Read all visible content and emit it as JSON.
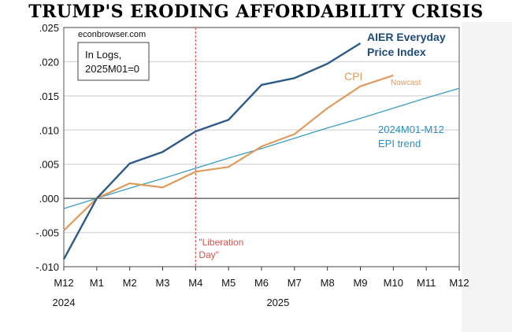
{
  "title": "TRUMP'S ERODING AFFORDABILITY CRISIS",
  "chart_data": {
    "type": "line",
    "title": "TRUMP'S ERODING AFFORDABILITY CRISIS",
    "source_label": "econbrowser.com",
    "note_lines": [
      "In Logs,",
      "2025M01=0"
    ],
    "x": [
      "M12",
      "M1",
      "M2",
      "M3",
      "M4",
      "M5",
      "M6",
      "M7",
      "M8",
      "M9",
      "M10",
      "M11",
      "M12"
    ],
    "year_labels": [
      {
        "label": "2024",
        "at": "M12"
      },
      {
        "label": "2025",
        "at": "M6-M7"
      }
    ],
    "ylim": [
      -0.01,
      0.025
    ],
    "yticks": [
      ".025",
      ".020",
      ".015",
      ".010",
      ".005",
      ".000",
      "-.005",
      "-.010"
    ],
    "ytick_values": [
      0.025,
      0.02,
      0.015,
      0.01,
      0.005,
      0.0,
      -0.005,
      -0.01
    ],
    "grid": true,
    "series": [
      {
        "name": "AIER Everyday Price Index",
        "label_lines": [
          "AIER Everyday",
          "Price Index"
        ],
        "color": "#2e5a88",
        "values": [
          -0.0089,
          0.0,
          0.0051,
          0.0068,
          0.0098,
          0.0115,
          0.0166,
          0.0176,
          0.0197,
          0.0227,
          null,
          null,
          null
        ]
      },
      {
        "name": "CPI",
        "label_lines": [
          "CPI"
        ],
        "color": "#e09a5c",
        "annotation": "Nowcast",
        "values": [
          -0.0047,
          0.0,
          0.0022,
          0.0016,
          0.0039,
          0.0046,
          0.0076,
          0.0094,
          0.0132,
          0.0164,
          0.018,
          null,
          null
        ]
      },
      {
        "name": "2024M01-M12 EPI trend",
        "label_lines": [
          "2024M01-M12",
          "EPI trend"
        ],
        "color": "#3a9cc4",
        "values": [
          -0.0015,
          0.0,
          0.0015,
          0.0029,
          0.0044,
          0.0059,
          0.0073,
          0.0088,
          0.0103,
          0.0117,
          0.0132,
          0.0147,
          0.0161
        ]
      }
    ],
    "event_line": {
      "at": "M4",
      "label_lines": [
        "\"Liberation",
        "Day\""
      ],
      "color": "#d9534f"
    }
  }
}
